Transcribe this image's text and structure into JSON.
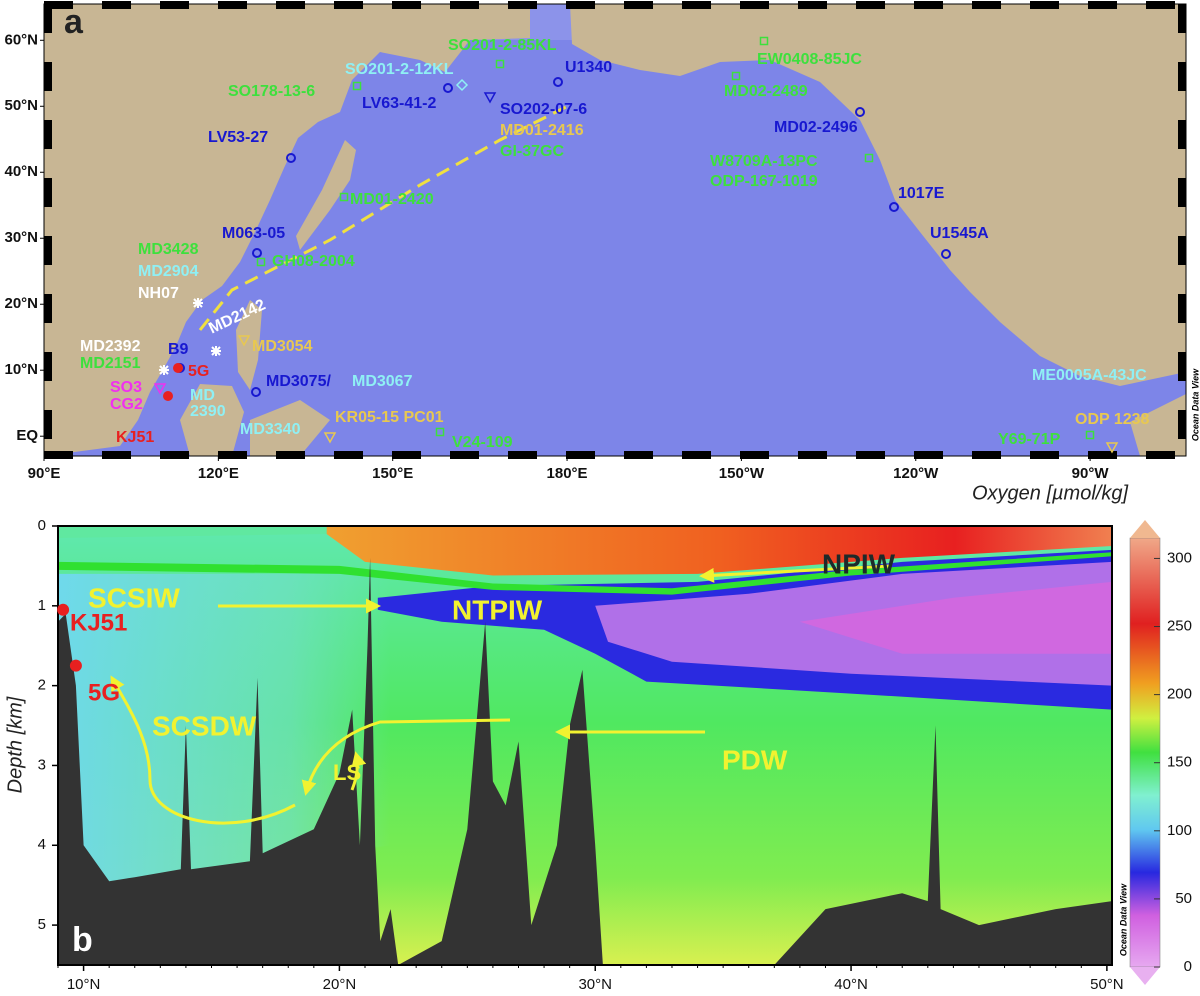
{
  "map": {
    "label": "a",
    "lonlim": [
      90,
      286.5
    ],
    "latlim": [
      -3,
      65.5
    ],
    "lon_ticks": [
      {
        "value": 90,
        "label": "90°E"
      },
      {
        "value": 120,
        "label": "120°E"
      },
      {
        "value": 150,
        "label": "150°E"
      },
      {
        "value": 180,
        "label": "180°E"
      },
      {
        "value": 210,
        "label": "150°W"
      },
      {
        "value": 240,
        "label": "120°W"
      },
      {
        "value": 270,
        "label": "90°W"
      }
    ],
    "lat_ticks": [
      {
        "value": 60,
        "label": "60°N"
      },
      {
        "value": 50,
        "label": "50°N"
      },
      {
        "value": 40,
        "label": "40°N"
      },
      {
        "value": 30,
        "label": "30°N"
      },
      {
        "value": 20,
        "label": "20°N"
      },
      {
        "value": 10,
        "label": "10°N"
      },
      {
        "value": 0,
        "label": "EQ"
      }
    ],
    "sites": [
      {
        "label": "SO201-2-85KL",
        "color": "#3de03d",
        "marker": "square"
      },
      {
        "label": "SO201-2-12KL",
        "color": "#8ff0f4",
        "marker": "diamond"
      },
      {
        "label": "U1340",
        "color": "#1818d0",
        "marker": "circle"
      },
      {
        "label": "EW0408-85JC",
        "color": "#3de03d",
        "marker": "square"
      },
      {
        "label": "SO178-13-6",
        "color": "#3de03d",
        "marker": "square"
      },
      {
        "label": "LV63-41-2",
        "color": "#1818d0",
        "marker": "circle"
      },
      {
        "label": "SO202-07-6",
        "color": "#1818d0",
        "marker": "triangle"
      },
      {
        "label": "MD01-2416",
        "color": "#e8c850",
        "marker": "none"
      },
      {
        "label": "MD02-2489",
        "color": "#3de03d",
        "marker": "square"
      },
      {
        "label": "LV53-27",
        "color": "#1818d0",
        "marker": "circle"
      },
      {
        "label": "MD02-2496",
        "color": "#1818d0",
        "marker": "circle"
      },
      {
        "label": "GI-37GC",
        "color": "#3de03d",
        "marker": "none"
      },
      {
        "label": "W8709A-13PC",
        "color": "#3de03d",
        "marker": "square"
      },
      {
        "label": "ODP-167-1019",
        "color": "#3de03d",
        "marker": "none"
      },
      {
        "label": "MD01-2420",
        "color": "#3de03d",
        "marker": "square"
      },
      {
        "label": "1017E",
        "color": "#1818d0",
        "marker": "circle"
      },
      {
        "label": "M063-05",
        "color": "#1818d0",
        "marker": "circle"
      },
      {
        "label": "U1545A",
        "color": "#1818d0",
        "marker": "circle"
      },
      {
        "label": "MD3428",
        "color": "#3de03d",
        "marker": "none"
      },
      {
        "label": "GH08-2004",
        "color": "#3de03d",
        "marker": "square"
      },
      {
        "label": "MD2904",
        "color": "#8ff0f4",
        "marker": "none"
      },
      {
        "label": "NH07",
        "color": "#ffffff",
        "marker": "star"
      },
      {
        "label": "MD2142",
        "color": "#ffffff",
        "marker": "star"
      },
      {
        "label": "MD3054",
        "color": "#e8c850",
        "marker": "triangle"
      },
      {
        "label": "MD2392",
        "color": "#ffffff",
        "marker": "star"
      },
      {
        "label": "B9",
        "color": "#1818d0",
        "marker": "circle"
      },
      {
        "label": "MD2151",
        "color": "#3de03d",
        "marker": "none"
      },
      {
        "label": "5G",
        "color": "#e82020",
        "marker": "dot"
      },
      {
        "label": "SO3",
        "color": "#f030f0",
        "marker": "triangle"
      },
      {
        "label": "MD3075/",
        "color": "#1818d0",
        "marker": "circle"
      },
      {
        "label": "MD3067",
        "color": "#8ff0f4",
        "marker": "none"
      },
      {
        "label": "ME0005A-43JC",
        "color": "#8ff0f4",
        "marker": "none"
      },
      {
        "label": "CG2",
        "color": "#f030f0",
        "marker": "none"
      },
      {
        "label": "MD",
        "color": "#8ff0f4",
        "marker": "none"
      },
      {
        "label": "2390",
        "color": "#8ff0f4",
        "marker": "none"
      },
      {
        "label": "KJ51",
        "color": "#e82020",
        "marker": "dot"
      },
      {
        "label": "KR05-15 PC01",
        "color": "#e8c850",
        "marker": "triangle"
      },
      {
        "label": "ODP 1238",
        "color": "#e8c850",
        "marker": "triangle"
      },
      {
        "label": "MD3340",
        "color": "#8ff0f4",
        "marker": "none"
      },
      {
        "label": "V24-109",
        "color": "#3de03d",
        "marker": "square"
      },
      {
        "label": "Y69-71P",
        "color": "#3de03d",
        "marker": "square"
      }
    ],
    "credit": "Ocean Data View"
  },
  "section": {
    "label": "b",
    "title": "Oxygen [µmol/kg]",
    "ylabel": "Depth [km]",
    "xlim": [
      9,
      50.2
    ],
    "ylim": [
      0,
      5.5
    ],
    "xticks": [
      {
        "value": 10,
        "label": "10°N"
      },
      {
        "value": 20,
        "label": "20°N"
      },
      {
        "value": 30,
        "label": "30°N"
      },
      {
        "value": 40,
        "label": "40°N"
      },
      {
        "value": 50,
        "label": "50°N"
      }
    ],
    "yticks": [
      0,
      1,
      2,
      3,
      4,
      5
    ],
    "colorbar": {
      "lim": [
        0,
        315
      ],
      "ticks": [
        0,
        50,
        100,
        150,
        200,
        250,
        300
      ]
    },
    "water_masses": [
      "SCSIW",
      "NTPIW",
      "NPIW",
      "SCSDW",
      "LS",
      "PDW"
    ],
    "sites": [
      "KJ51",
      "5G"
    ],
    "credit": "Ocean Data View"
  }
}
